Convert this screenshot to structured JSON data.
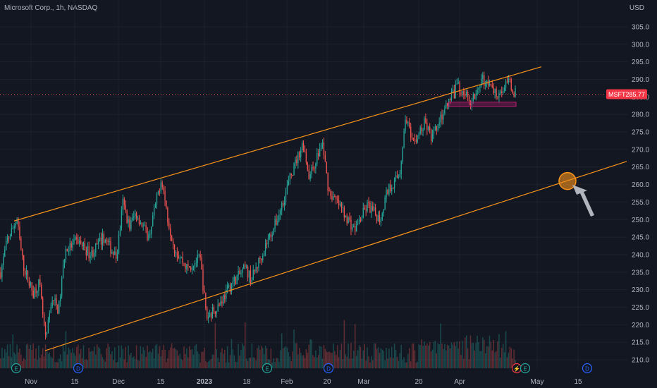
{
  "header": {
    "title": "Microsoft Corp., 1h, NASDAQ",
    "currency": "USD"
  },
  "price_tag": {
    "symbol": "MSFT",
    "value": "285.77",
    "color": "#f23645"
  },
  "colors": {
    "background": "#131722",
    "up": "#26a69a",
    "down": "#ef5350",
    "channel": "#f7931a",
    "zone": "#b71c6e",
    "arrow": "#b2b5be",
    "event_e": "#26a69a",
    "event_d": "#2962ff"
  },
  "chart_data": {
    "type": "candlestick",
    "symbol": "MSFT",
    "interval": "1h",
    "exchange": "NASDAQ",
    "last_price": 285.77,
    "y_ticks": [
      210,
      215,
      220,
      225,
      230,
      235,
      240,
      245,
      250,
      255,
      260,
      265,
      270,
      275,
      280,
      285,
      290,
      295,
      300,
      305
    ],
    "ylim": [
      208,
      309
    ],
    "x_ticks": [
      "Nov",
      "15",
      "Dec",
      "15",
      "2023",
      "18",
      "Feb",
      "20",
      "Mar",
      "20",
      "Apr",
      "May",
      "15"
    ],
    "bold_x_ticks": [
      "2023"
    ],
    "price_path": [
      [
        0,
        235
      ],
      [
        0.01,
        244
      ],
      [
        0.025,
        250
      ],
      [
        0.035,
        237
      ],
      [
        0.05,
        229
      ],
      [
        0.06,
        232
      ],
      [
        0.07,
        215
      ],
      [
        0.08,
        228
      ],
      [
        0.09,
        224
      ],
      [
        0.1,
        241
      ],
      [
        0.12,
        244
      ],
      [
        0.14,
        240
      ],
      [
        0.16,
        245
      ],
      [
        0.18,
        239
      ],
      [
        0.19,
        255
      ],
      [
        0.2,
        248
      ],
      [
        0.21,
        252
      ],
      [
        0.23,
        245
      ],
      [
        0.25,
        262
      ],
      [
        0.26,
        250
      ],
      [
        0.27,
        242
      ],
      [
        0.29,
        236
      ],
      [
        0.31,
        239
      ],
      [
        0.32,
        222
      ],
      [
        0.34,
        226
      ],
      [
        0.36,
        232
      ],
      [
        0.38,
        236
      ],
      [
        0.39,
        233
      ],
      [
        0.41,
        242
      ],
      [
        0.43,
        250
      ],
      [
        0.45,
        262
      ],
      [
        0.47,
        272
      ],
      [
        0.48,
        262
      ],
      [
        0.5,
        272
      ],
      [
        0.51,
        258
      ],
      [
        0.53,
        253
      ],
      [
        0.55,
        247
      ],
      [
        0.57,
        254
      ],
      [
        0.59,
        250
      ],
      [
        0.6,
        258
      ],
      [
        0.62,
        263
      ],
      [
        0.63,
        280
      ],
      [
        0.64,
        271
      ],
      [
        0.66,
        278
      ],
      [
        0.67,
        273
      ],
      [
        0.69,
        281
      ],
      [
        0.71,
        288
      ],
      [
        0.73,
        284
      ],
      [
        0.75,
        290
      ],
      [
        0.77,
        286
      ],
      [
        0.79,
        289
      ],
      [
        0.8,
        286
      ]
    ],
    "overlays": {
      "upper_channel": {
        "from": {
          "x": "early Nov",
          "y": 249.6
        },
        "to": {
          "x": "early May",
          "y": 293.6
        }
      },
      "lower_channel": {
        "from": {
          "x": "early Nov",
          "y": 212.6
        },
        "to": {
          "x": "late May",
          "y": 266.6
        }
      },
      "zone": {
        "y_low": 282.3,
        "y_high": 283.5,
        "x_from": "late Mar",
        "x_to": "mid Apr"
      },
      "marker": {
        "shape": "circle",
        "y": 261,
        "x": "early May"
      },
      "arrow": {
        "points_to": "marker"
      }
    },
    "events": [
      {
        "label": "E",
        "x": "Oct 25"
      },
      {
        "label": "D",
        "x": "Nov 16"
      },
      {
        "label": "E",
        "x": "Jan 24"
      },
      {
        "label": "D",
        "x": "Feb 15"
      },
      {
        "label": "⚡",
        "x": "Apr 25"
      },
      {
        "label": "E",
        "x": "Apr 25"
      },
      {
        "label": "D",
        "x": "May 17"
      }
    ]
  }
}
